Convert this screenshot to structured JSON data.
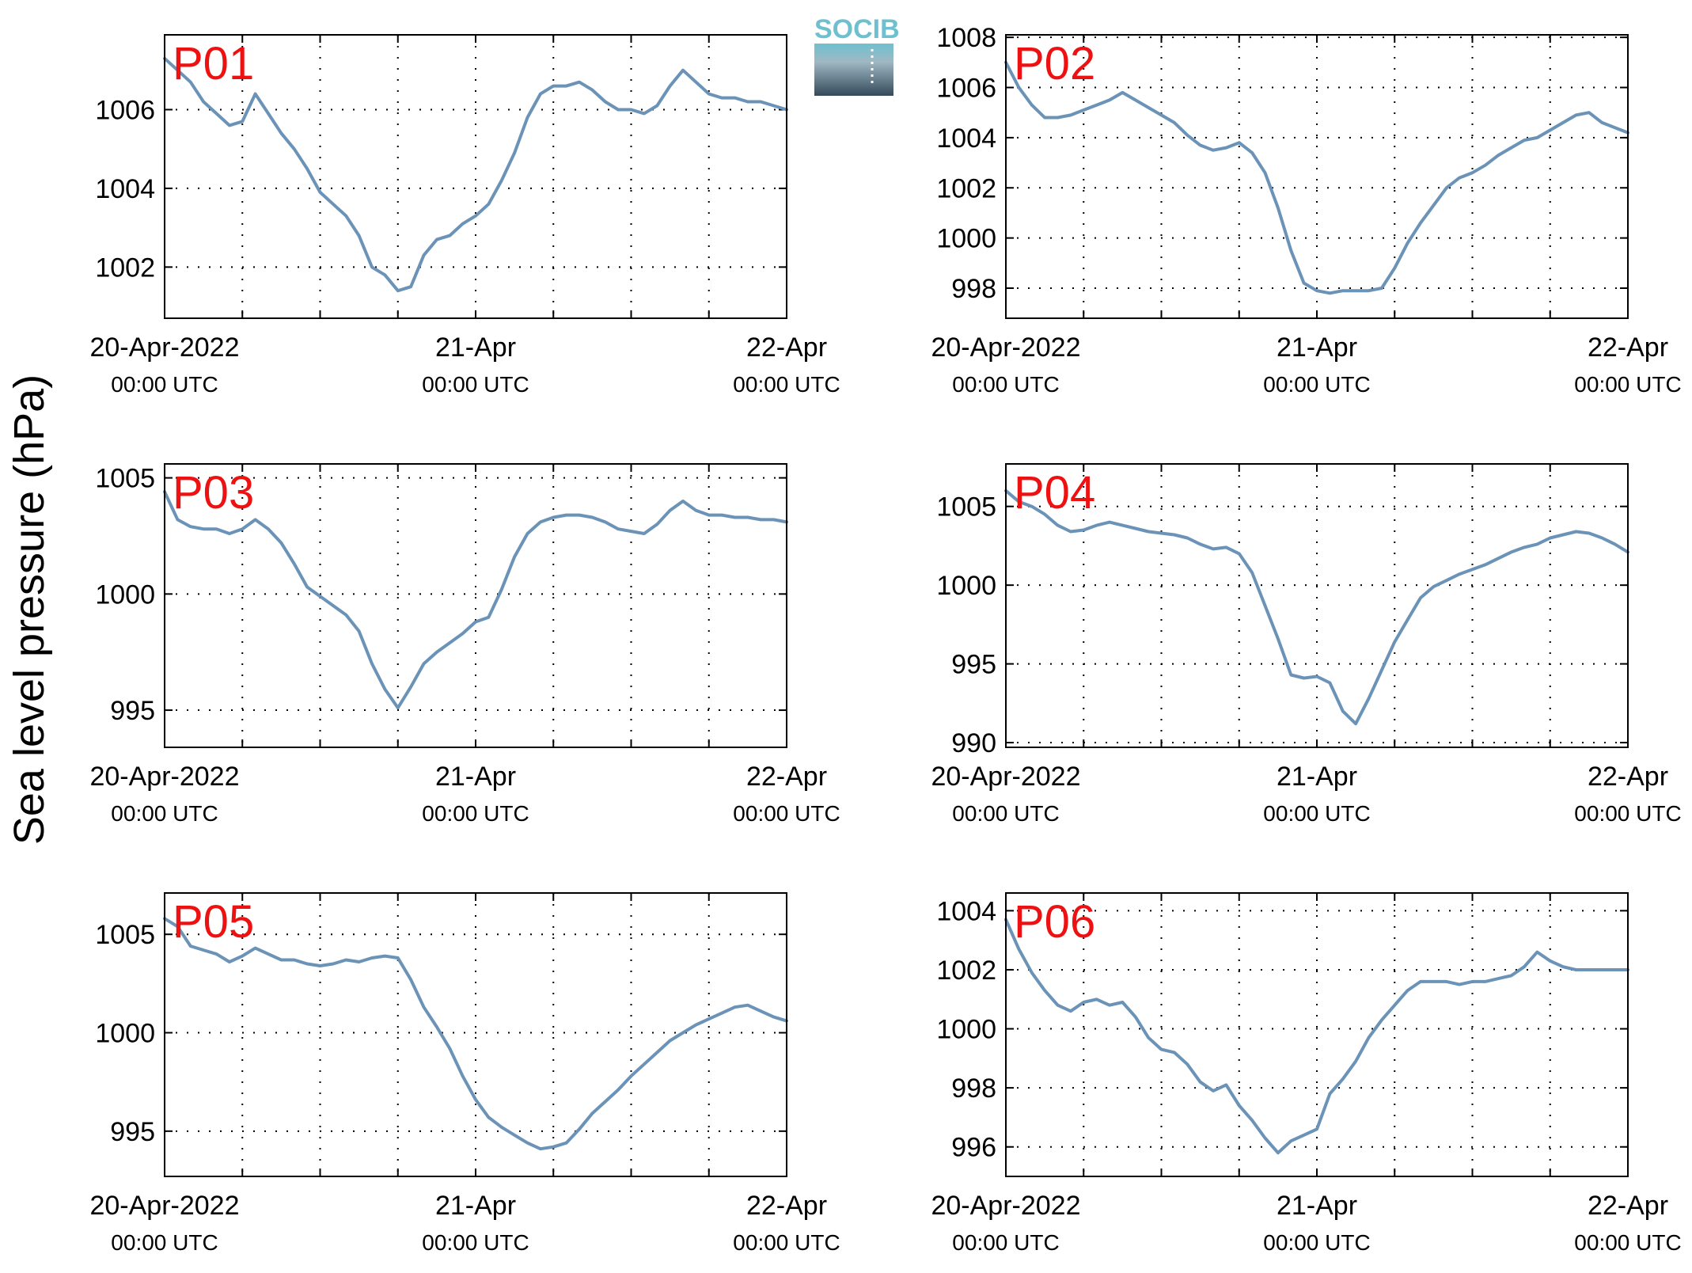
{
  "ylabel": "Sea level pressure (hPa)",
  "logo": {
    "text": "SOCIB"
  },
  "colors": {
    "line": "#6b93b7",
    "panel_label": "#ee1111",
    "grid": "#000000",
    "logo_top": "#6fc0cf",
    "logo_bottom": "#34495a"
  },
  "chart_data": [
    {
      "type": "line",
      "label": "P01",
      "x_ticks": [
        {
          "top": "20-Apr-2022",
          "bottom": "00:00 UTC"
        },
        {
          "top": "21-Apr",
          "bottom": "00:00 UTC"
        },
        {
          "top": "22-Apr",
          "bottom": "00:00 UTC"
        }
      ],
      "xlim_hours": [
        0,
        48
      ],
      "ylim": [
        1000.7,
        1007.9
      ],
      "yticks": [
        1002,
        1004,
        1006
      ],
      "ytick_labels": [
        "1002",
        "1004",
        "1006"
      ],
      "grid": true,
      "hours": [
        0,
        1,
        2,
        3,
        4,
        5,
        6,
        7,
        8,
        9,
        10,
        11,
        12,
        13,
        14,
        15,
        16,
        17,
        18,
        19,
        20,
        21,
        22,
        23,
        24,
        25,
        26,
        27,
        28,
        29,
        30,
        31,
        32,
        33,
        34,
        35,
        36,
        37,
        38,
        39,
        40,
        41,
        42,
        43,
        44,
        45,
        46,
        47,
        48
      ],
      "values": [
        1007.3,
        1007.0,
        1006.7,
        1006.2,
        1005.9,
        1005.6,
        1005.7,
        1006.4,
        1005.9,
        1005.4,
        1005.0,
        1004.5,
        1003.9,
        1003.6,
        1003.3,
        1002.8,
        1002.0,
        1001.8,
        1001.4,
        1001.5,
        1002.3,
        1002.7,
        1002.8,
        1003.1,
        1003.3,
        1003.6,
        1004.2,
        1004.9,
        1005.8,
        1006.4,
        1006.6,
        1006.6,
        1006.7,
        1006.5,
        1006.2,
        1006.0,
        1006.0,
        1005.9,
        1006.1,
        1006.6,
        1007.0,
        1006.7,
        1006.4,
        1006.3,
        1006.3,
        1006.2,
        1006.2,
        1006.1,
        1006.0
      ]
    },
    {
      "type": "line",
      "label": "P02",
      "x_ticks": [
        {
          "top": "20-Apr-2022",
          "bottom": "00:00 UTC"
        },
        {
          "top": "21-Apr",
          "bottom": "00:00 UTC"
        },
        {
          "top": "22-Apr",
          "bottom": "00:00 UTC"
        }
      ],
      "xlim_hours": [
        0,
        48
      ],
      "ylim": [
        996.8,
        1008.1
      ],
      "yticks": [
        998,
        1000,
        1002,
        1004,
        1006,
        1008
      ],
      "ytick_labels": [
        "998",
        "1000",
        "1002",
        "1004",
        "1006",
        "1008"
      ],
      "grid": true,
      "hours": [
        0,
        1,
        2,
        3,
        4,
        5,
        6,
        7,
        8,
        9,
        10,
        11,
        12,
        13,
        14,
        15,
        16,
        17,
        18,
        19,
        20,
        21,
        22,
        23,
        24,
        25,
        26,
        27,
        28,
        29,
        30,
        31,
        32,
        33,
        34,
        35,
        36,
        37,
        38,
        39,
        40,
        41,
        42,
        43,
        44,
        45,
        46,
        47,
        48
      ],
      "values": [
        1007.0,
        1006.0,
        1005.3,
        1004.8,
        1004.8,
        1004.9,
        1005.1,
        1005.3,
        1005.5,
        1005.8,
        1005.5,
        1005.2,
        1004.9,
        1004.6,
        1004.1,
        1003.7,
        1003.5,
        1003.6,
        1003.8,
        1003.4,
        1002.6,
        1001.2,
        999.5,
        998.2,
        997.9,
        997.8,
        997.9,
        997.9,
        997.9,
        998.0,
        998.8,
        999.8,
        1000.6,
        1001.3,
        1002.0,
        1002.4,
        1002.6,
        1002.9,
        1003.3,
        1003.6,
        1003.9,
        1004.0,
        1004.3,
        1004.6,
        1004.9,
        1005.0,
        1004.6,
        1004.4,
        1004.2
      ]
    },
    {
      "type": "line",
      "label": "P03",
      "x_ticks": [
        {
          "top": "20-Apr-2022",
          "bottom": "00:00 UTC"
        },
        {
          "top": "21-Apr",
          "bottom": "00:00 UTC"
        },
        {
          "top": "22-Apr",
          "bottom": "00:00 UTC"
        }
      ],
      "xlim_hours": [
        0,
        48
      ],
      "ylim": [
        993.4,
        1005.6
      ],
      "yticks": [
        995,
        1000,
        1005
      ],
      "ytick_labels": [
        "995",
        "1000",
        "1005"
      ],
      "grid": true,
      "hours": [
        0,
        1,
        2,
        3,
        4,
        5,
        6,
        7,
        8,
        9,
        10,
        11,
        12,
        13,
        14,
        15,
        16,
        17,
        18,
        19,
        20,
        21,
        22,
        23,
        24,
        25,
        26,
        27,
        28,
        29,
        30,
        31,
        32,
        33,
        34,
        35,
        36,
        37,
        38,
        39,
        40,
        41,
        42,
        43,
        44,
        45,
        46,
        47,
        48
      ],
      "values": [
        1004.4,
        1003.2,
        1002.9,
        1002.8,
        1002.8,
        1002.6,
        1002.8,
        1003.2,
        1002.8,
        1002.2,
        1001.3,
        1000.3,
        999.9,
        999.5,
        999.1,
        998.4,
        997.0,
        995.9,
        995.1,
        996.0,
        997.0,
        997.5,
        997.9,
        998.3,
        998.8,
        999.0,
        1000.2,
        1001.6,
        1002.6,
        1003.1,
        1003.3,
        1003.4,
        1003.4,
        1003.3,
        1003.1,
        1002.8,
        1002.7,
        1002.6,
        1003.0,
        1003.6,
        1004.0,
        1003.6,
        1003.4,
        1003.4,
        1003.3,
        1003.3,
        1003.2,
        1003.2,
        1003.1
      ]
    },
    {
      "type": "line",
      "label": "P04",
      "x_ticks": [
        {
          "top": "20-Apr-2022",
          "bottom": "00:00 UTC"
        },
        {
          "top": "21-Apr",
          "bottom": "00:00 UTC"
        },
        {
          "top": "22-Apr",
          "bottom": "00:00 UTC"
        }
      ],
      "xlim_hours": [
        0,
        48
      ],
      "ylim": [
        989.7,
        1007.7
      ],
      "yticks": [
        990,
        995,
        1000,
        1005
      ],
      "ytick_labels": [
        "990",
        "995",
        "1000",
        "1005"
      ],
      "grid": true,
      "hours": [
        0,
        1,
        2,
        3,
        4,
        5,
        6,
        7,
        8,
        9,
        10,
        11,
        12,
        13,
        14,
        15,
        16,
        17,
        18,
        19,
        20,
        21,
        22,
        23,
        24,
        25,
        26,
        27,
        28,
        29,
        30,
        31,
        32,
        33,
        34,
        35,
        36,
        37,
        38,
        39,
        40,
        41,
        42,
        43,
        44,
        45,
        46,
        47,
        48
      ],
      "values": [
        1006.0,
        1005.3,
        1005.0,
        1004.5,
        1003.8,
        1003.4,
        1003.5,
        1003.8,
        1004.0,
        1003.8,
        1003.6,
        1003.4,
        1003.3,
        1003.2,
        1003.0,
        1002.6,
        1002.3,
        1002.4,
        1002.0,
        1000.8,
        998.7,
        996.6,
        994.3,
        994.1,
        994.2,
        993.8,
        992.0,
        991.2,
        992.8,
        994.6,
        996.4,
        997.8,
        999.2,
        999.9,
        1000.3,
        1000.7,
        1001.0,
        1001.3,
        1001.7,
        1002.1,
        1002.4,
        1002.6,
        1003.0,
        1003.2,
        1003.4,
        1003.3,
        1003.0,
        1002.6,
        1002.1
      ]
    },
    {
      "type": "line",
      "label": "P05",
      "x_ticks": [
        {
          "top": "20-Apr-2022",
          "bottom": "00:00 UTC"
        },
        {
          "top": "21-Apr",
          "bottom": "00:00 UTC"
        },
        {
          "top": "22-Apr",
          "bottom": "00:00 UTC"
        }
      ],
      "xlim_hours": [
        0,
        48
      ],
      "ylim": [
        992.7,
        1007.1
      ],
      "yticks": [
        995,
        1000,
        1005
      ],
      "ytick_labels": [
        "995",
        "1000",
        "1005"
      ],
      "grid": true,
      "hours": [
        0,
        1,
        2,
        3,
        4,
        5,
        6,
        7,
        8,
        9,
        10,
        11,
        12,
        13,
        14,
        15,
        16,
        17,
        18,
        19,
        20,
        21,
        22,
        23,
        24,
        25,
        26,
        27,
        28,
        29,
        30,
        31,
        32,
        33,
        34,
        35,
        36,
        37,
        38,
        39,
        40,
        41,
        42,
        43,
        44,
        45,
        46,
        47,
        48
      ],
      "values": [
        1005.8,
        1005.4,
        1004.4,
        1004.2,
        1004.0,
        1003.6,
        1003.9,
        1004.3,
        1004.0,
        1003.7,
        1003.7,
        1003.5,
        1003.4,
        1003.5,
        1003.7,
        1003.6,
        1003.8,
        1003.9,
        1003.8,
        1002.7,
        1001.3,
        1000.3,
        999.2,
        997.8,
        996.6,
        995.7,
        995.2,
        994.8,
        994.4,
        994.1,
        994.2,
        994.4,
        995.1,
        995.9,
        996.5,
        997.1,
        997.8,
        998.4,
        999.0,
        999.6,
        1000.0,
        1000.4,
        1000.7,
        1001.0,
        1001.3,
        1001.4,
        1001.1,
        1000.8,
        1000.6
      ]
    },
    {
      "type": "line",
      "label": "P06",
      "x_ticks": [
        {
          "top": "20-Apr-2022",
          "bottom": "00:00 UTC"
        },
        {
          "top": "21-Apr",
          "bottom": "00:00 UTC"
        },
        {
          "top": "22-Apr",
          "bottom": "00:00 UTC"
        }
      ],
      "xlim_hours": [
        0,
        48
      ],
      "ylim": [
        995.0,
        1004.6
      ],
      "yticks": [
        996,
        998,
        1000,
        1002,
        1004
      ],
      "ytick_labels": [
        "996",
        "998",
        "1000",
        "1002",
        "1004"
      ],
      "grid": true,
      "hours": [
        0,
        1,
        2,
        3,
        4,
        5,
        6,
        7,
        8,
        9,
        10,
        11,
        12,
        13,
        14,
        15,
        16,
        17,
        18,
        19,
        20,
        21,
        22,
        23,
        24,
        25,
        26,
        27,
        28,
        29,
        30,
        31,
        32,
        33,
        34,
        35,
        36,
        37,
        38,
        39,
        40,
        41,
        42,
        43,
        44,
        45,
        46,
        47,
        48
      ],
      "values": [
        1003.7,
        1002.7,
        1001.9,
        1001.3,
        1000.8,
        1000.6,
        1000.9,
        1001.0,
        1000.8,
        1000.9,
        1000.4,
        999.7,
        999.3,
        999.2,
        998.8,
        998.2,
        997.9,
        998.1,
        997.4,
        996.9,
        996.3,
        995.8,
        996.2,
        996.4,
        996.6,
        997.8,
        998.3,
        998.9,
        999.7,
        1000.3,
        1000.8,
        1001.3,
        1001.6,
        1001.6,
        1001.6,
        1001.5,
        1001.6,
        1001.6,
        1001.7,
        1001.8,
        1002.1,
        1002.6,
        1002.3,
        1002.1,
        1002.0,
        1002.0,
        1002.0,
        1002.0,
        1002.0
      ]
    }
  ]
}
